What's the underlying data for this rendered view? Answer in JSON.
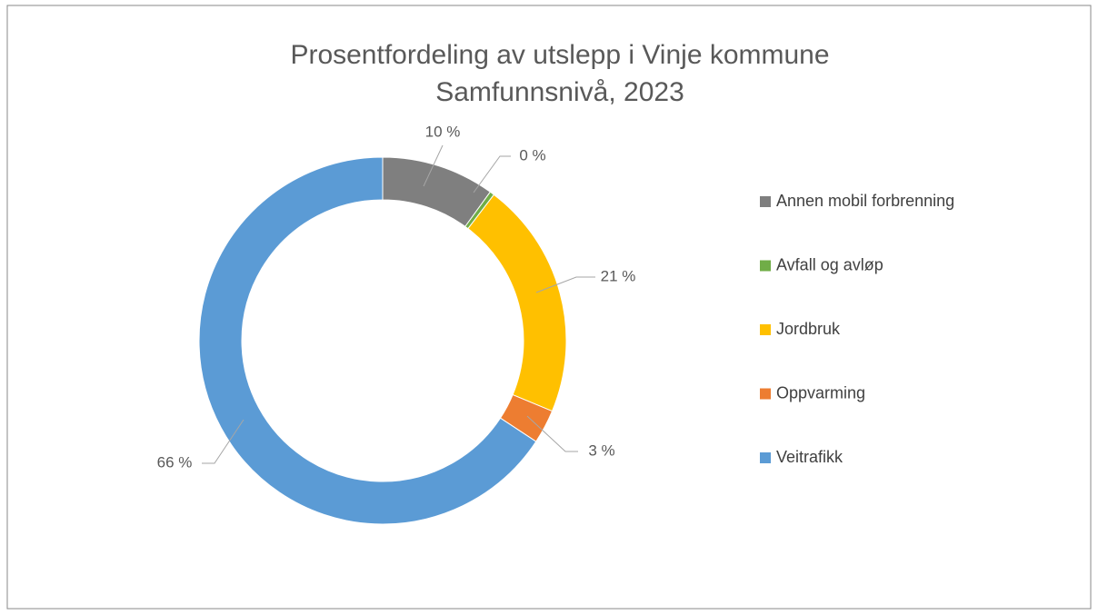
{
  "chart_data": {
    "type": "donut",
    "title": "Prosentfordeling av utslepp i Vinje kommune",
    "subtitle": "Samfunnsnivå, 2023",
    "categories": [
      "Annen mobil forbrenning",
      "Avfall og avløp",
      "Jordbruk",
      "Oppvarming",
      "Veitrafikk"
    ],
    "values": [
      10,
      0.4,
      21,
      3,
      66
    ],
    "value_labels": [
      "10 %",
      "0 %",
      "21 %",
      "3 %",
      "66 %"
    ],
    "colors": [
      "#7f7f7f",
      "#70ad47",
      "#ffc000",
      "#ed7d31",
      "#5b9bd5"
    ],
    "legend": "right"
  }
}
